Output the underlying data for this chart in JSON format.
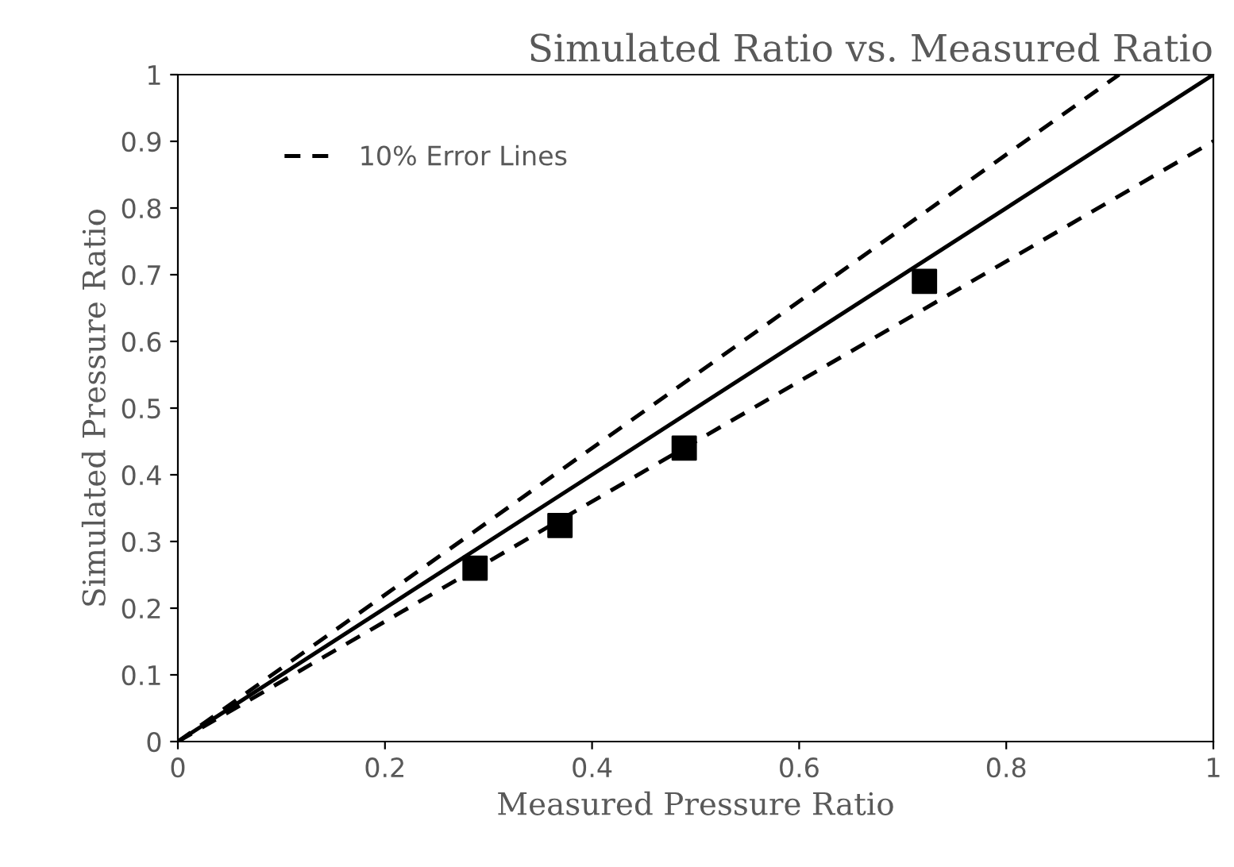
{
  "chart_data": {
    "type": "scatter",
    "title": "Simulated Ratio vs. Measured Ratio",
    "xlabel": "Measured Pressure Ratio",
    "ylabel": "Simulated Pressure Ratio",
    "x": [
      0.287,
      0.369,
      0.489,
      0.721
    ],
    "series": [
      {
        "color": "#000000",
        "marker": "square",
        "values": [
          0.26,
          0.324,
          0.44,
          0.69
        ]
      },
      {
        "type": "line",
        "color": "#000000",
        "line_style": "solid",
        "marker": "none",
        "x": [
          0,
          1
        ],
        "values": [
          0,
          1
        ]
      },
      {
        "type": "line",
        "name": "10% Error Lines",
        "color": "#000000",
        "line_style": "dashed",
        "marker": "none",
        "x": [
          0,
          0.909
        ],
        "values": [
          0,
          1
        ]
      },
      {
        "type": "line",
        "color": "#000000",
        "line_style": "dashed",
        "marker": "none",
        "x": [
          0,
          1
        ],
        "values": [
          0,
          0.9
        ]
      }
    ],
    "xlim": [
      0,
      1
    ],
    "xticks": [
      0,
      0.2,
      0.4,
      0.6,
      0.8,
      1
    ],
    "ylim": [
      0,
      1
    ],
    "yticks": [
      0,
      0.1,
      0.2,
      0.3,
      0.4,
      0.5,
      0.6,
      0.7,
      0.8,
      0.9,
      1
    ],
    "grid": false,
    "legend": "top left"
  }
}
